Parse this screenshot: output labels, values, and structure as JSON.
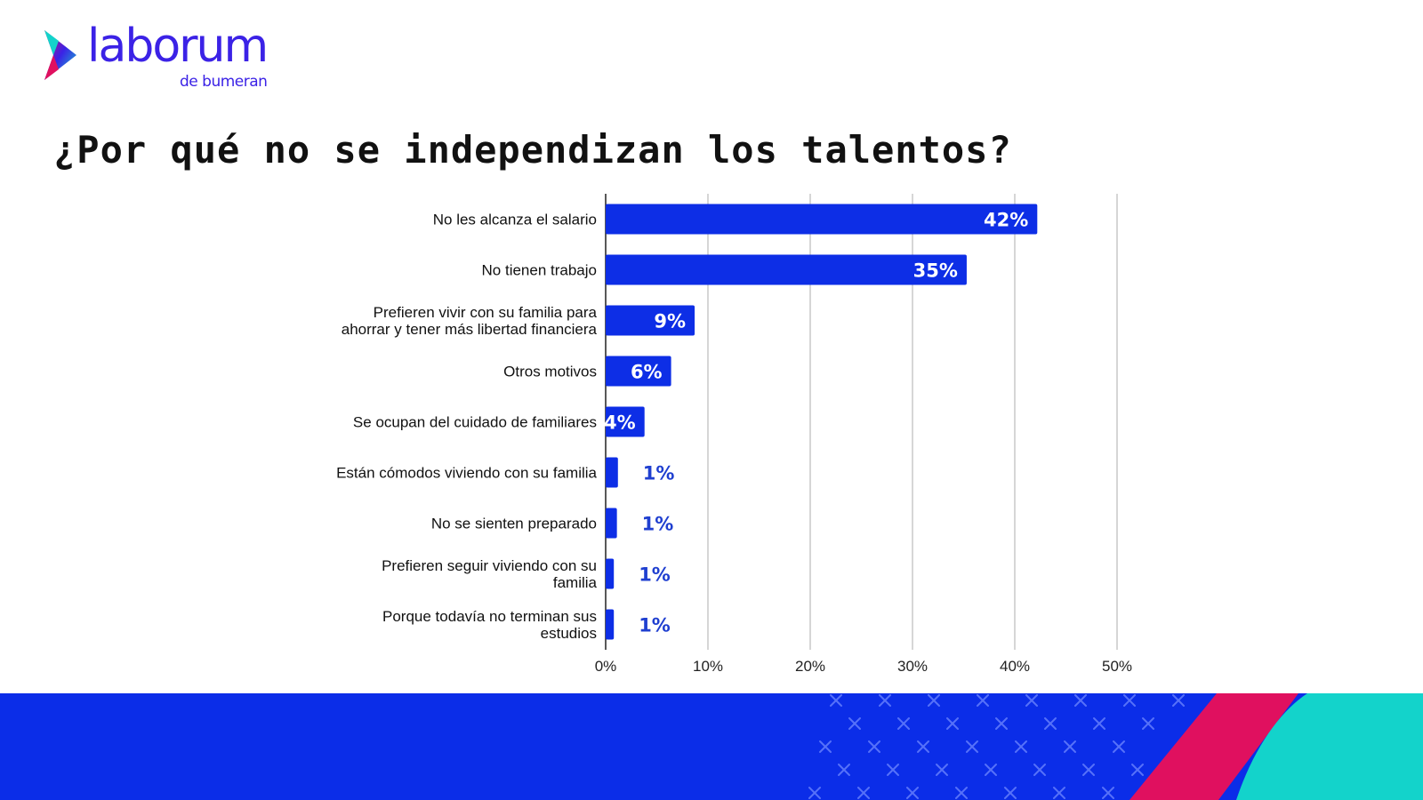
{
  "brand": {
    "name": "laborum",
    "sub": "de bumeran"
  },
  "title": "¿Por qué no se independizan los talentos?",
  "colors": {
    "bar": "#0d2ee6",
    "brand": "#3b22e6",
    "footer_blue": "#0b2de8",
    "footer_pink": "#e0105f",
    "footer_teal": "#13d3cb"
  },
  "chart_data": {
    "type": "bar",
    "orientation": "horizontal",
    "categories": [
      [
        "No les alcanza el salario"
      ],
      [
        "No tienen trabajo"
      ],
      [
        "Prefieren vivir con su familia para",
        "ahorrar y tener más libertad financiera"
      ],
      [
        "Otros motivos"
      ],
      [
        "Se ocupan del cuidado de familiares"
      ],
      [
        "Están cómodos viviendo con su familia"
      ],
      [
        "No se sienten preparado"
      ],
      [
        "Prefieren seguir viviendo con su",
        "familia"
      ],
      [
        "Porque todavía no terminan sus",
        "estudios"
      ]
    ],
    "values": [
      42.2,
      35.3,
      8.7,
      6.4,
      3.8,
      1.2,
      1.1,
      0.8,
      0.8
    ],
    "value_labels": [
      "42%",
      "35%",
      "9%",
      "6%",
      "4%",
      "1%",
      "1%",
      "1%",
      "1%"
    ],
    "xlim": [
      0,
      50
    ],
    "ticks": [
      "0%",
      "10%",
      "20%",
      "30%",
      "40%",
      "50%"
    ],
    "grid": true
  }
}
